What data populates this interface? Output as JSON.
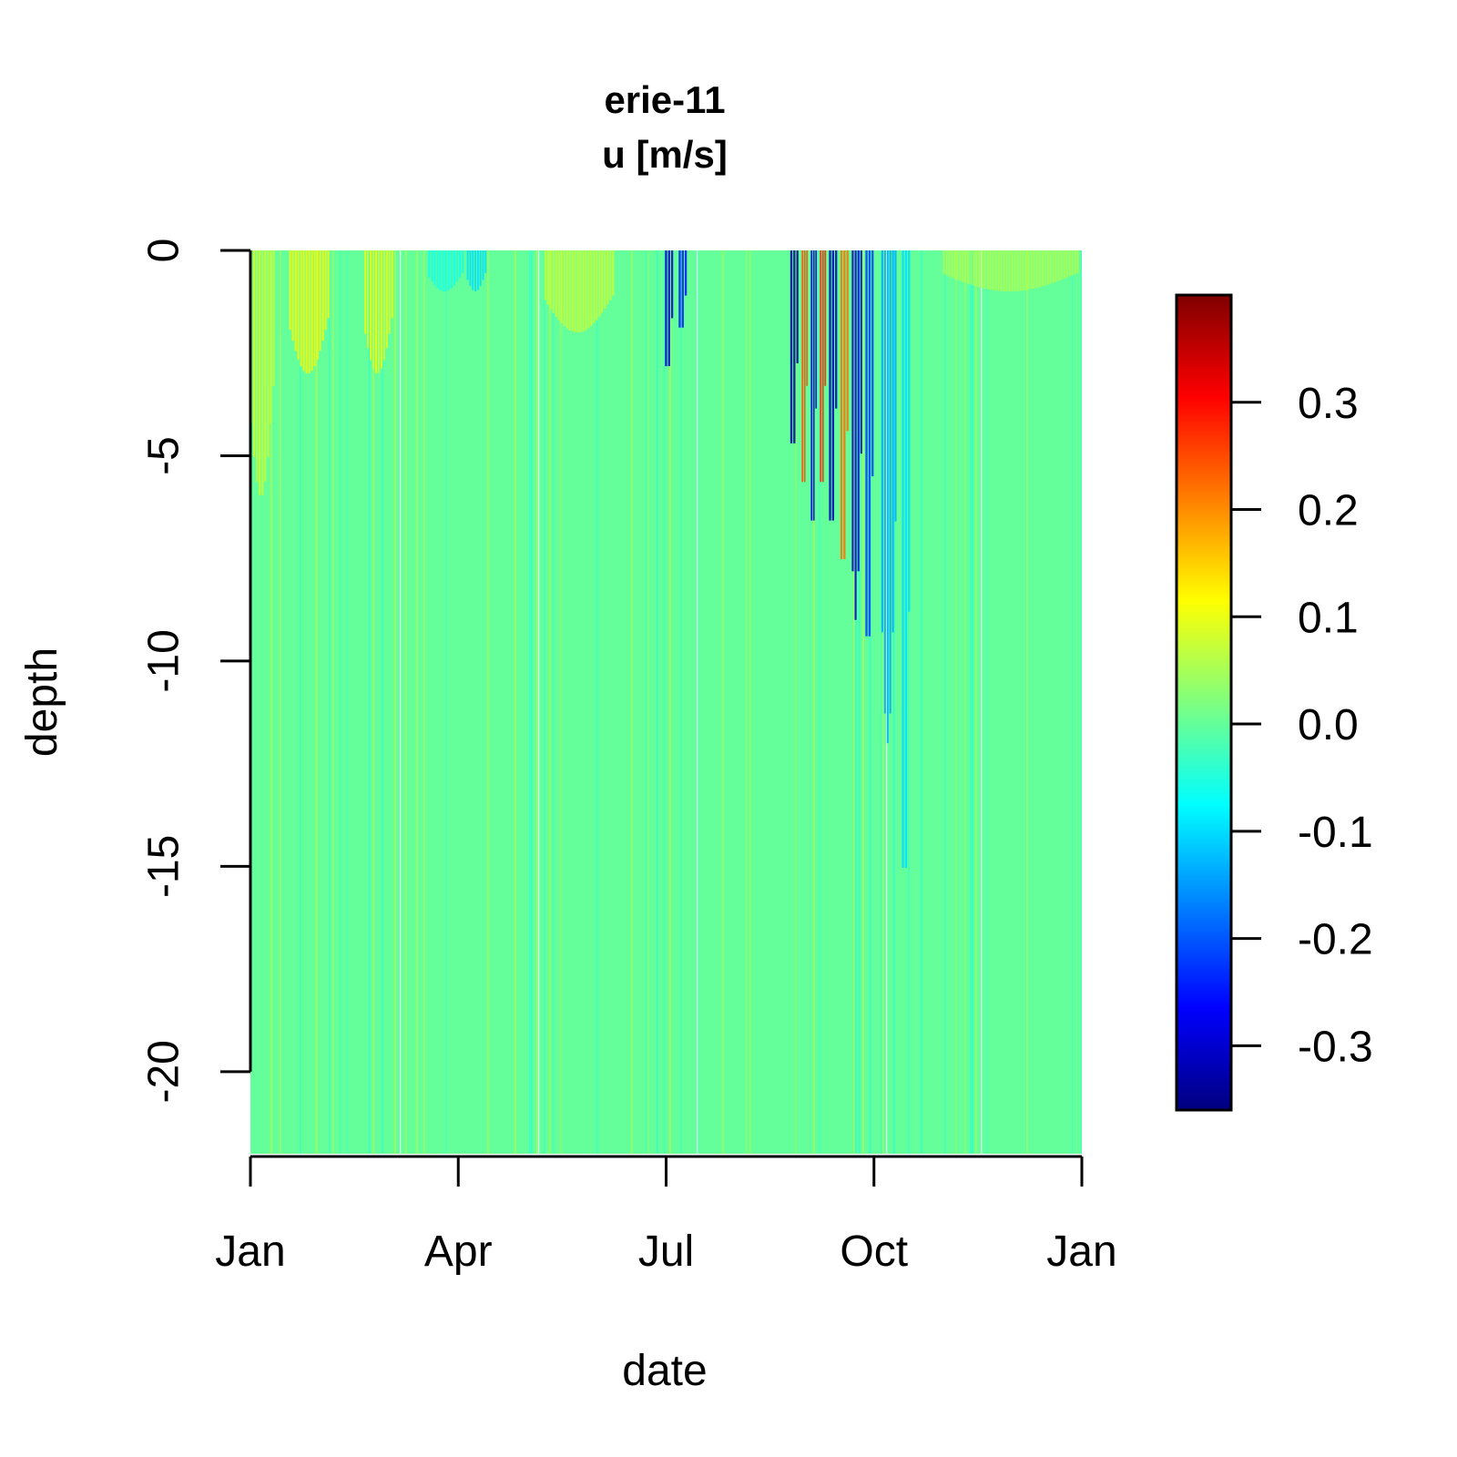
{
  "chart_data": {
    "type": "heatmap",
    "title": "erie-11",
    "subtitle": "u [m/s]",
    "xlabel": "date",
    "ylabel": "depth",
    "x_tick_labels": [
      "Jan",
      "Apr",
      "Jul",
      "Oct",
      "Jan"
    ],
    "x_range": [
      "2010-01-01",
      "2011-01-01"
    ],
    "y_ticks": [
      0,
      -5,
      -10,
      -15,
      -20
    ],
    "y_tick_labels": [
      "0",
      "-5",
      "-10",
      "-15",
      "-20"
    ],
    "y_range": [
      -22,
      0
    ],
    "colorbar": {
      "range": [
        -0.36,
        0.4
      ],
      "ticks": [
        0.3,
        0.2,
        0.1,
        0.0,
        -0.1,
        -0.2,
        -0.3
      ],
      "tick_labels": [
        "0.3",
        "0.2",
        "0.1",
        "0.0",
        "-0.1",
        "-0.2",
        "-0.3"
      ],
      "colors": [
        "#00007F",
        "#0000FF",
        "#007FFF",
        "#00FFFF",
        "#7FFF7F",
        "#FFFF00",
        "#FF7F00",
        "#FF0000",
        "#7F0000"
      ]
    },
    "background_value": 0.0,
    "features": [
      {
        "date_start": "2010-01-01",
        "date_end": "2010-01-12",
        "depth_bottom": -6,
        "value": 0.08
      },
      {
        "date_start": "2010-01-18",
        "date_end": "2010-02-05",
        "depth_bottom": -3,
        "value": 0.12
      },
      {
        "date_start": "2010-02-20",
        "date_end": "2010-03-05",
        "depth_bottom": -3,
        "value": 0.1
      },
      {
        "date_start": "2010-03-20",
        "date_end": "2010-04-05",
        "depth_bottom": -1,
        "value": -0.06
      },
      {
        "date_start": "2010-04-06",
        "date_end": "2010-04-15",
        "depth_bottom": -1,
        "value": -0.1
      },
      {
        "date_start": "2010-05-10",
        "date_end": "2010-06-10",
        "depth_bottom": -2,
        "value": 0.08
      },
      {
        "date_start": "2010-07-02",
        "date_end": "2010-07-06",
        "depth_bottom": -3,
        "value": -0.3
      },
      {
        "date_start": "2010-07-08",
        "date_end": "2010-07-12",
        "depth_bottom": -2,
        "value": -0.25
      },
      {
        "date_start": "2010-08-26",
        "date_end": "2010-08-30",
        "depth_bottom": -5,
        "value": -0.34
      },
      {
        "date_start": "2010-08-31",
        "date_end": "2010-09-03",
        "depth_bottom": -6,
        "value": 0.25
      },
      {
        "date_start": "2010-09-04",
        "date_end": "2010-09-07",
        "depth_bottom": -7,
        "value": -0.3
      },
      {
        "date_start": "2010-09-08",
        "date_end": "2010-09-11",
        "depth_bottom": -6,
        "value": 0.28
      },
      {
        "date_start": "2010-09-12",
        "date_end": "2010-09-16",
        "depth_bottom": -7,
        "value": -0.32
      },
      {
        "date_start": "2010-09-17",
        "date_end": "2010-09-21",
        "depth_bottom": -8,
        "value": 0.22
      },
      {
        "date_start": "2010-09-22",
        "date_end": "2010-09-27",
        "depth_bottom": -9,
        "value": -0.3
      },
      {
        "date_start": "2010-09-28",
        "date_end": "2010-10-02",
        "depth_bottom": -10,
        "value": -0.22
      },
      {
        "date_start": "2010-10-05",
        "date_end": "2010-10-12",
        "depth_bottom": -12,
        "value": -0.14
      },
      {
        "date_start": "2010-10-14",
        "date_end": "2010-10-18",
        "depth_bottom": -16,
        "value": -0.1
      },
      {
        "date_start": "2010-11-01",
        "date_end": "2010-12-31",
        "depth_bottom": -1,
        "value": 0.06
      }
    ]
  }
}
